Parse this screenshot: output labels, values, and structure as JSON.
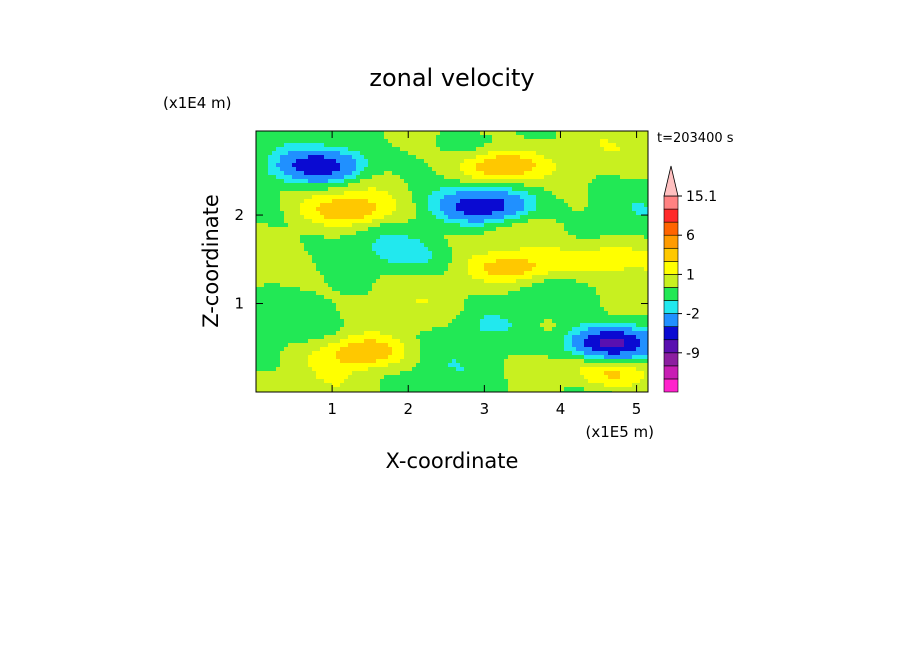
{
  "chart_data": {
    "type": "heatmap",
    "title": "zonal velocity",
    "xlabel": "X-coordinate",
    "ylabel": "Z-coordinate",
    "x_scale_label": "(x1E5 m)",
    "y_scale_label": "(x1E4 m)",
    "time_label": "t=203400 s",
    "xlim": [
      0,
      5.15
    ],
    "ylim": [
      0,
      2.95
    ],
    "x_ticks": [
      1,
      2,
      3,
      4,
      5
    ],
    "y_ticks": [
      1,
      2
    ],
    "x_tick_labels": [
      "1",
      "2",
      "3",
      "4",
      "5"
    ],
    "y_tick_labels": [
      "1",
      "2"
    ],
    "colorbar": {
      "levels": [
        -15,
        -12,
        -9,
        -6,
        -4,
        -2,
        -1,
        0,
        1,
        2,
        4,
        6,
        9,
        12,
        15.1
      ],
      "colors": [
        "#ff22cc",
        "#c81eb4",
        "#8c1ea0",
        "#5a10b0",
        "#0a0ad2",
        "#2090ff",
        "#22e8ee",
        "#22e855",
        "#c8f020",
        "#ffff00",
        "#ffc800",
        "#ff9b00",
        "#ff6400",
        "#ff2a2a",
        "#ff8282",
        "#ffc0c0"
      ],
      "labeled_ticks": [
        "15.1",
        "6",
        "1",
        "-2",
        "-9"
      ],
      "labeled_values": [
        15.1,
        6,
        1,
        -2,
        -9
      ],
      "extend": "max"
    },
    "field_features": [
      {
        "x": 0.85,
        "z": 2.55,
        "value": -6
      },
      {
        "x": 3.0,
        "z": 2.1,
        "value": -6
      },
      {
        "x": 4.65,
        "z": 0.55,
        "value": -7
      },
      {
        "x": 3.2,
        "z": 2.55,
        "value": 4
      },
      {
        "x": 1.25,
        "z": 2.05,
        "value": 3
      },
      {
        "x": 1.4,
        "z": 0.45,
        "value": 3
      },
      {
        "x": 3.4,
        "z": 1.4,
        "value": 3
      },
      {
        "x": 4.5,
        "z": 1.5,
        "value": 2
      },
      {
        "x": 2.0,
        "z": 1.55,
        "value": -1
      },
      {
        "x": 3.0,
        "z": 0.75,
        "value": -1
      },
      {
        "x": 4.75,
        "z": 0.2,
        "value": 2
      }
    ]
  }
}
